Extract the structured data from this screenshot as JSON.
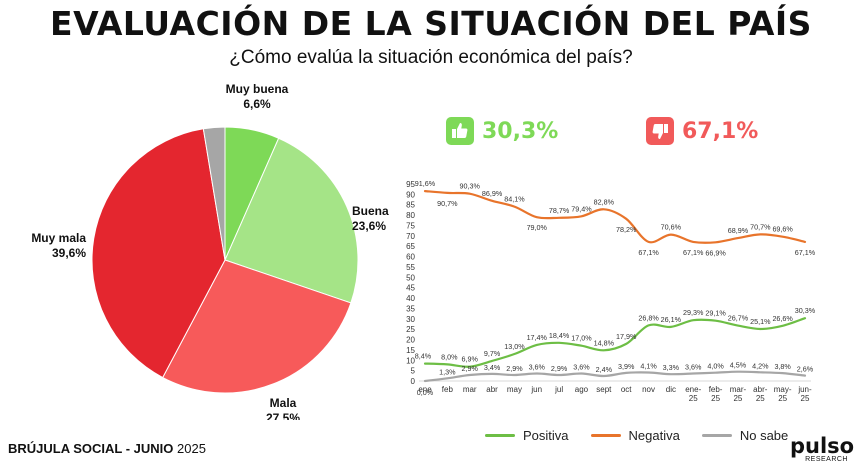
{
  "header": {
    "title": "EVALUACIÓN DE LA SITUACIÓN DEL PAÍS",
    "subtitle": "¿Cómo evalúa la situación económica del país?"
  },
  "kpis": {
    "positive": {
      "value": "30,3%",
      "color": "#7ED957",
      "icon": "thumbs-up-icon"
    },
    "negative": {
      "value": "67,1%",
      "color": "#F15A5A",
      "icon": "thumbs-down-icon"
    }
  },
  "footer": {
    "label_bold": "BRÚJULA SOCIAL - JUNIO",
    "label_regular": "2025"
  },
  "logo": {
    "brand": "pulso",
    "sub": "RESEARCH"
  },
  "chart_data": [
    {
      "type": "pie",
      "title": "",
      "slices": [
        {
          "name": "Muy buena",
          "value": 6.6,
          "label": "6,6%",
          "color": "#7ED957"
        },
        {
          "name": "Buena",
          "value": 23.6,
          "label": "23,6%",
          "color": "#A5E487"
        },
        {
          "name": "Mala",
          "value": 27.5,
          "label": "27,5%",
          "color": "#F75A5A"
        },
        {
          "name": "Muy mala",
          "value": 39.6,
          "label": "39,6%",
          "color": "#E4262F"
        },
        {
          "name": "No sabe",
          "value": 2.6,
          "label": "",
          "color": "#A6A6A6"
        }
      ]
    },
    {
      "type": "line",
      "title": "",
      "xlabel": "",
      "ylabel": "",
      "ylim": [
        0,
        95
      ],
      "yticks": [
        0,
        5,
        10,
        15,
        20,
        25,
        30,
        35,
        40,
        45,
        50,
        55,
        60,
        65,
        70,
        75,
        80,
        85,
        90,
        95
      ],
      "categories": [
        "ene",
        "feb",
        "mar",
        "abr",
        "may",
        "jun",
        "jul",
        "ago",
        "sept",
        "oct",
        "nov",
        "dic",
        "ene-25",
        "feb-25",
        "mar-25",
        "abr-25",
        "may-25",
        "jun-25"
      ],
      "legend_position": "bottom",
      "series": [
        {
          "name": "Positiva",
          "color": "#6DBE45",
          "values": [
            8.4,
            8.0,
            6.9,
            9.7,
            13.0,
            17.4,
            18.4,
            17.0,
            14.8,
            17.9,
            26.8,
            26.1,
            29.3,
            29.1,
            26.7,
            25.1,
            26.6,
            30.3
          ],
          "labels": [
            "8,4%",
            "8,0%",
            "6,9%",
            "9,7%",
            "13,0%",
            "17,4%",
            "18,4%",
            "17,0%",
            "14,8%",
            "17,9%",
            "26,8%",
            "26,1%",
            "29,3%",
            "29,1%",
            "26,7%",
            "25,1%",
            "26,6%",
            "30,3%"
          ]
        },
        {
          "name": "Negativa",
          "color": "#E8742B",
          "values": [
            91.6,
            90.7,
            90.3,
            86.9,
            84.1,
            79.0,
            78.7,
            79.4,
            82.8,
            78.2,
            67.1,
            70.6,
            67.1,
            66.9,
            68.9,
            70.7,
            69.6,
            67.1
          ],
          "labels": [
            "91,6%",
            "90,7%",
            "90,3%",
            "86,9%",
            "84,1%",
            "79,0%",
            "78,7%",
            "79,4%",
            "82,8%",
            "78,2%",
            "67,1%",
            "70,6%",
            "67,1%",
            "66,9%",
            "68,9%",
            "70,7%",
            "69,6%",
            "67,1%"
          ]
        },
        {
          "name": "No sabe",
          "color": "#A6A6A6",
          "values": [
            0.0,
            1.3,
            2.9,
            3.4,
            2.9,
            3.6,
            2.9,
            3.6,
            2.4,
            3.9,
            4.1,
            3.3,
            3.6,
            4.0,
            4.5,
            4.2,
            3.8,
            2.6
          ],
          "labels": [
            "0,0%",
            "1,3%",
            "2,9%",
            "3,4%",
            "2,9%",
            "3,6%",
            "2,9%",
            "3,6%",
            "2,4%",
            "3,9%",
            "4,1%",
            "3,3%",
            "3,6%",
            "4,0%",
            "4,5%",
            "4,2%",
            "3,8%",
            "2,6%"
          ]
        }
      ]
    }
  ]
}
